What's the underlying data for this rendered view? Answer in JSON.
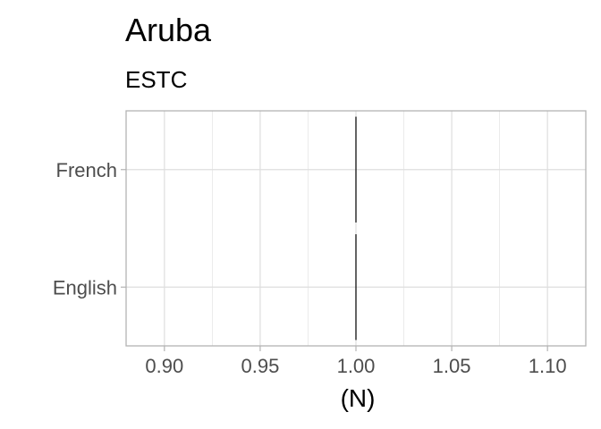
{
  "chart_data": {
    "type": "bar",
    "orientation": "horizontal",
    "title": "Aruba",
    "subtitle": "ESTC",
    "xlabel": "(N)",
    "ylabel": "",
    "categories": [
      "French",
      "English"
    ],
    "values": [
      1,
      1
    ],
    "xlim": [
      0.88,
      1.12
    ],
    "xticks": [
      "0.90",
      "0.95",
      "1.00",
      "1.05",
      "1.10"
    ],
    "grid": true,
    "legend": "none",
    "colors": {
      "bar": "#000000",
      "grid": "#dedede",
      "panel_border": "#b3b3b3",
      "tick_text": "#4d4d4d"
    }
  }
}
